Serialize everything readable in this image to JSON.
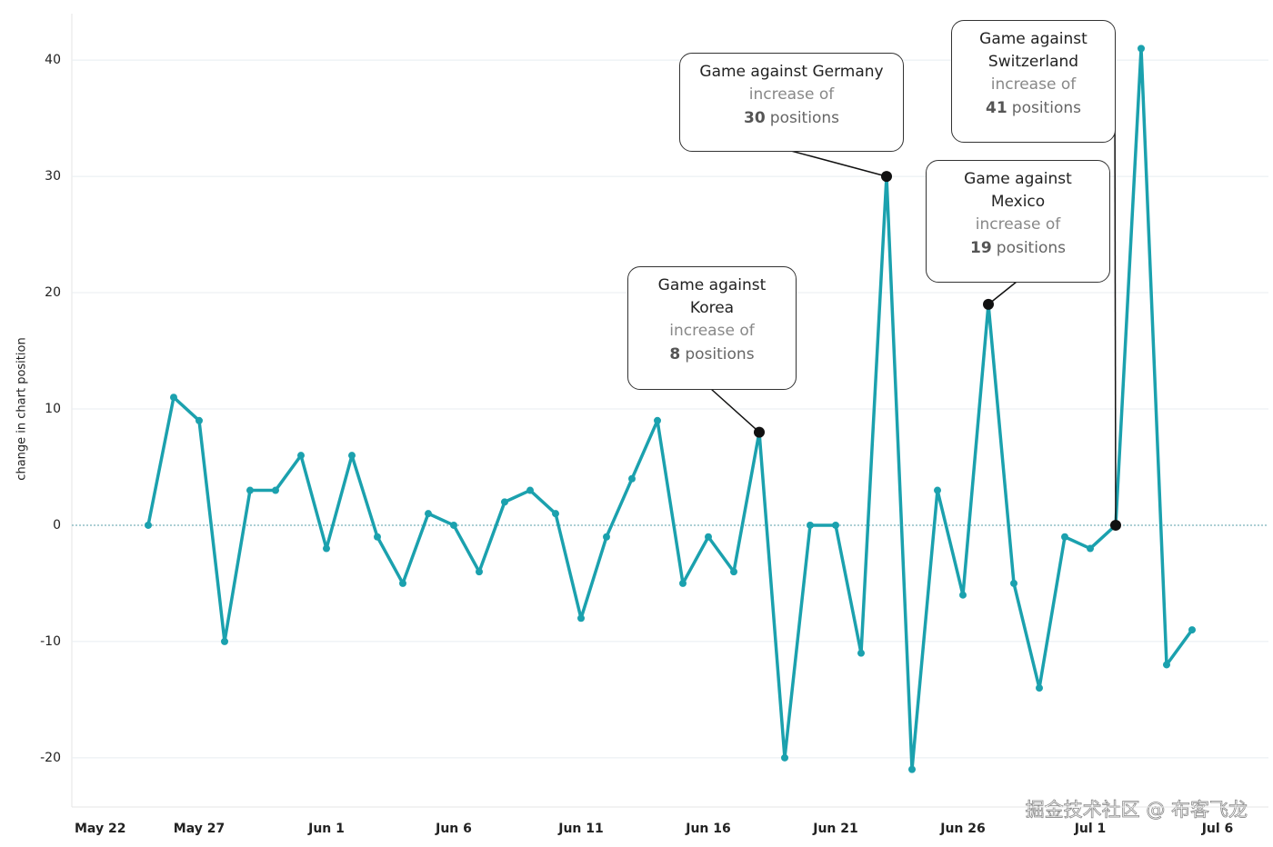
{
  "chart_data": {
    "type": "line",
    "y_label": "change in chart position",
    "x": [
      "May 25",
      "May 26",
      "May 27",
      "May 28",
      "May 29",
      "May 30",
      "May 31",
      "Jun 1",
      "Jun 2",
      "Jun 3",
      "Jun 4",
      "Jun 5",
      "Jun 6",
      "Jun 7",
      "Jun 8",
      "Jun 9",
      "Jun 10",
      "Jun 11",
      "Jun 12",
      "Jun 13",
      "Jun 14",
      "Jun 15",
      "Jun 16",
      "Jun 17",
      "Jun 18",
      "Jun 19",
      "Jun 20",
      "Jun 21",
      "Jun 22",
      "Jun 23",
      "Jun 24",
      "Jun 25",
      "Jun 26",
      "Jun 27",
      "Jun 28",
      "Jun 29",
      "Jun 30",
      "Jul 1",
      "Jul 2",
      "Jul 3",
      "Jul 4",
      "Jul 5"
    ],
    "series": [
      {
        "name": "change in chart position",
        "color": "#1ba1ae",
        "values": [
          0,
          11,
          9,
          -10,
          3,
          3,
          6,
          -2,
          6,
          -1,
          -5,
          1,
          0,
          -4,
          2,
          3,
          1,
          -8,
          -1,
          4,
          9,
          -5,
          -1,
          -4,
          8,
          -20,
          0,
          0,
          -11,
          30,
          -21,
          3,
          -6,
          19,
          -5,
          -14,
          -1,
          -2,
          0,
          41,
          -12,
          -9
        ]
      }
    ],
    "xlim": [
      "May 22",
      "Jul 8"
    ],
    "xticks": [
      "May 22",
      "May 27",
      "Jun 1",
      "Jun 6",
      "Jun 11",
      "Jun 16",
      "Jun 21",
      "Jun 26",
      "Jul 1",
      "Jul 6"
    ],
    "ylim": [
      -24,
      44
    ],
    "yticks": [
      -20,
      -10,
      0,
      10,
      20,
      30,
      40
    ],
    "grid": true,
    "annotations": [
      {
        "title": "Game against Korea",
        "text": "increase of",
        "value": 8,
        "unit": "positions",
        "x": "Jun 18"
      },
      {
        "title": "Game against Germany",
        "text": "increase of",
        "value": 30,
        "unit": "positions",
        "x": "Jun 23"
      },
      {
        "title": "Game against Mexico",
        "text": "increase of",
        "value": 19,
        "unit": "positions",
        "x": "Jun 27"
      },
      {
        "title": "Game against Switzerland",
        "text": "increase of",
        "value": 41,
        "unit": "positions",
        "x": "Jul 2"
      }
    ],
    "watermark": "掘金技术社区 @ 布客飞龙"
  }
}
